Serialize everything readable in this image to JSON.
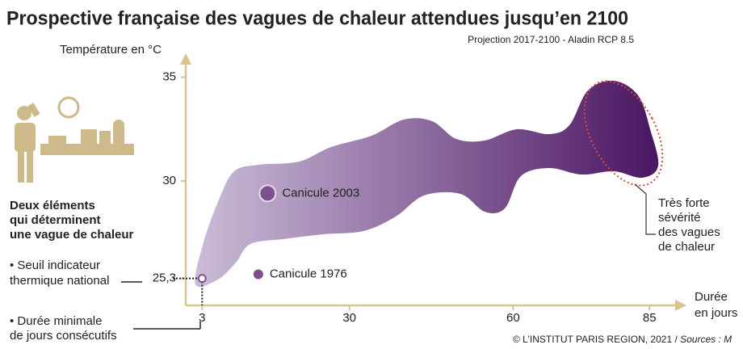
{
  "chart_data": {
    "type": "scatter",
    "title": "Prospective française des vagues de chaleur attendues jusqu’en 2100",
    "subtitle": "Projection 2017-2100 - Aladin RCP 8.5",
    "y_label": "Température en °C",
    "x_label": [
      "Durée",
      "en jours"
    ],
    "ylim": [
      24,
      36
    ],
    "yticks": [
      {
        "value": 25.3,
        "label": "25,3"
      },
      30,
      35
    ],
    "xlim": [
      0,
      90
    ],
    "xticks": [
      3,
      30,
      60,
      85
    ],
    "point_color": "#7d4f8f",
    "points": [
      {
        "label": "Canicule 2003",
        "x": 15,
        "y": 29.4
      },
      {
        "label": "Canicule 1976",
        "x": 13.3,
        "y": 25.5
      }
    ],
    "left_notes": {
      "intro": [
        "Deux éléments",
        "qui déterminent",
        "une vague de chaleur"
      ],
      "threshold": [
        "• Seuil indicateur",
        "thermique national"
      ],
      "duration": [
        "• Durée minimale",
        "de jours consécutifs"
      ]
    },
    "right_note": [
      "Très forte",
      "sévérité",
      "des vagues",
      "de chaleur"
    ],
    "credit": "© L’INSTITUT PARIS REGION, 2021 / ",
    "sources": "Sources : M"
  }
}
